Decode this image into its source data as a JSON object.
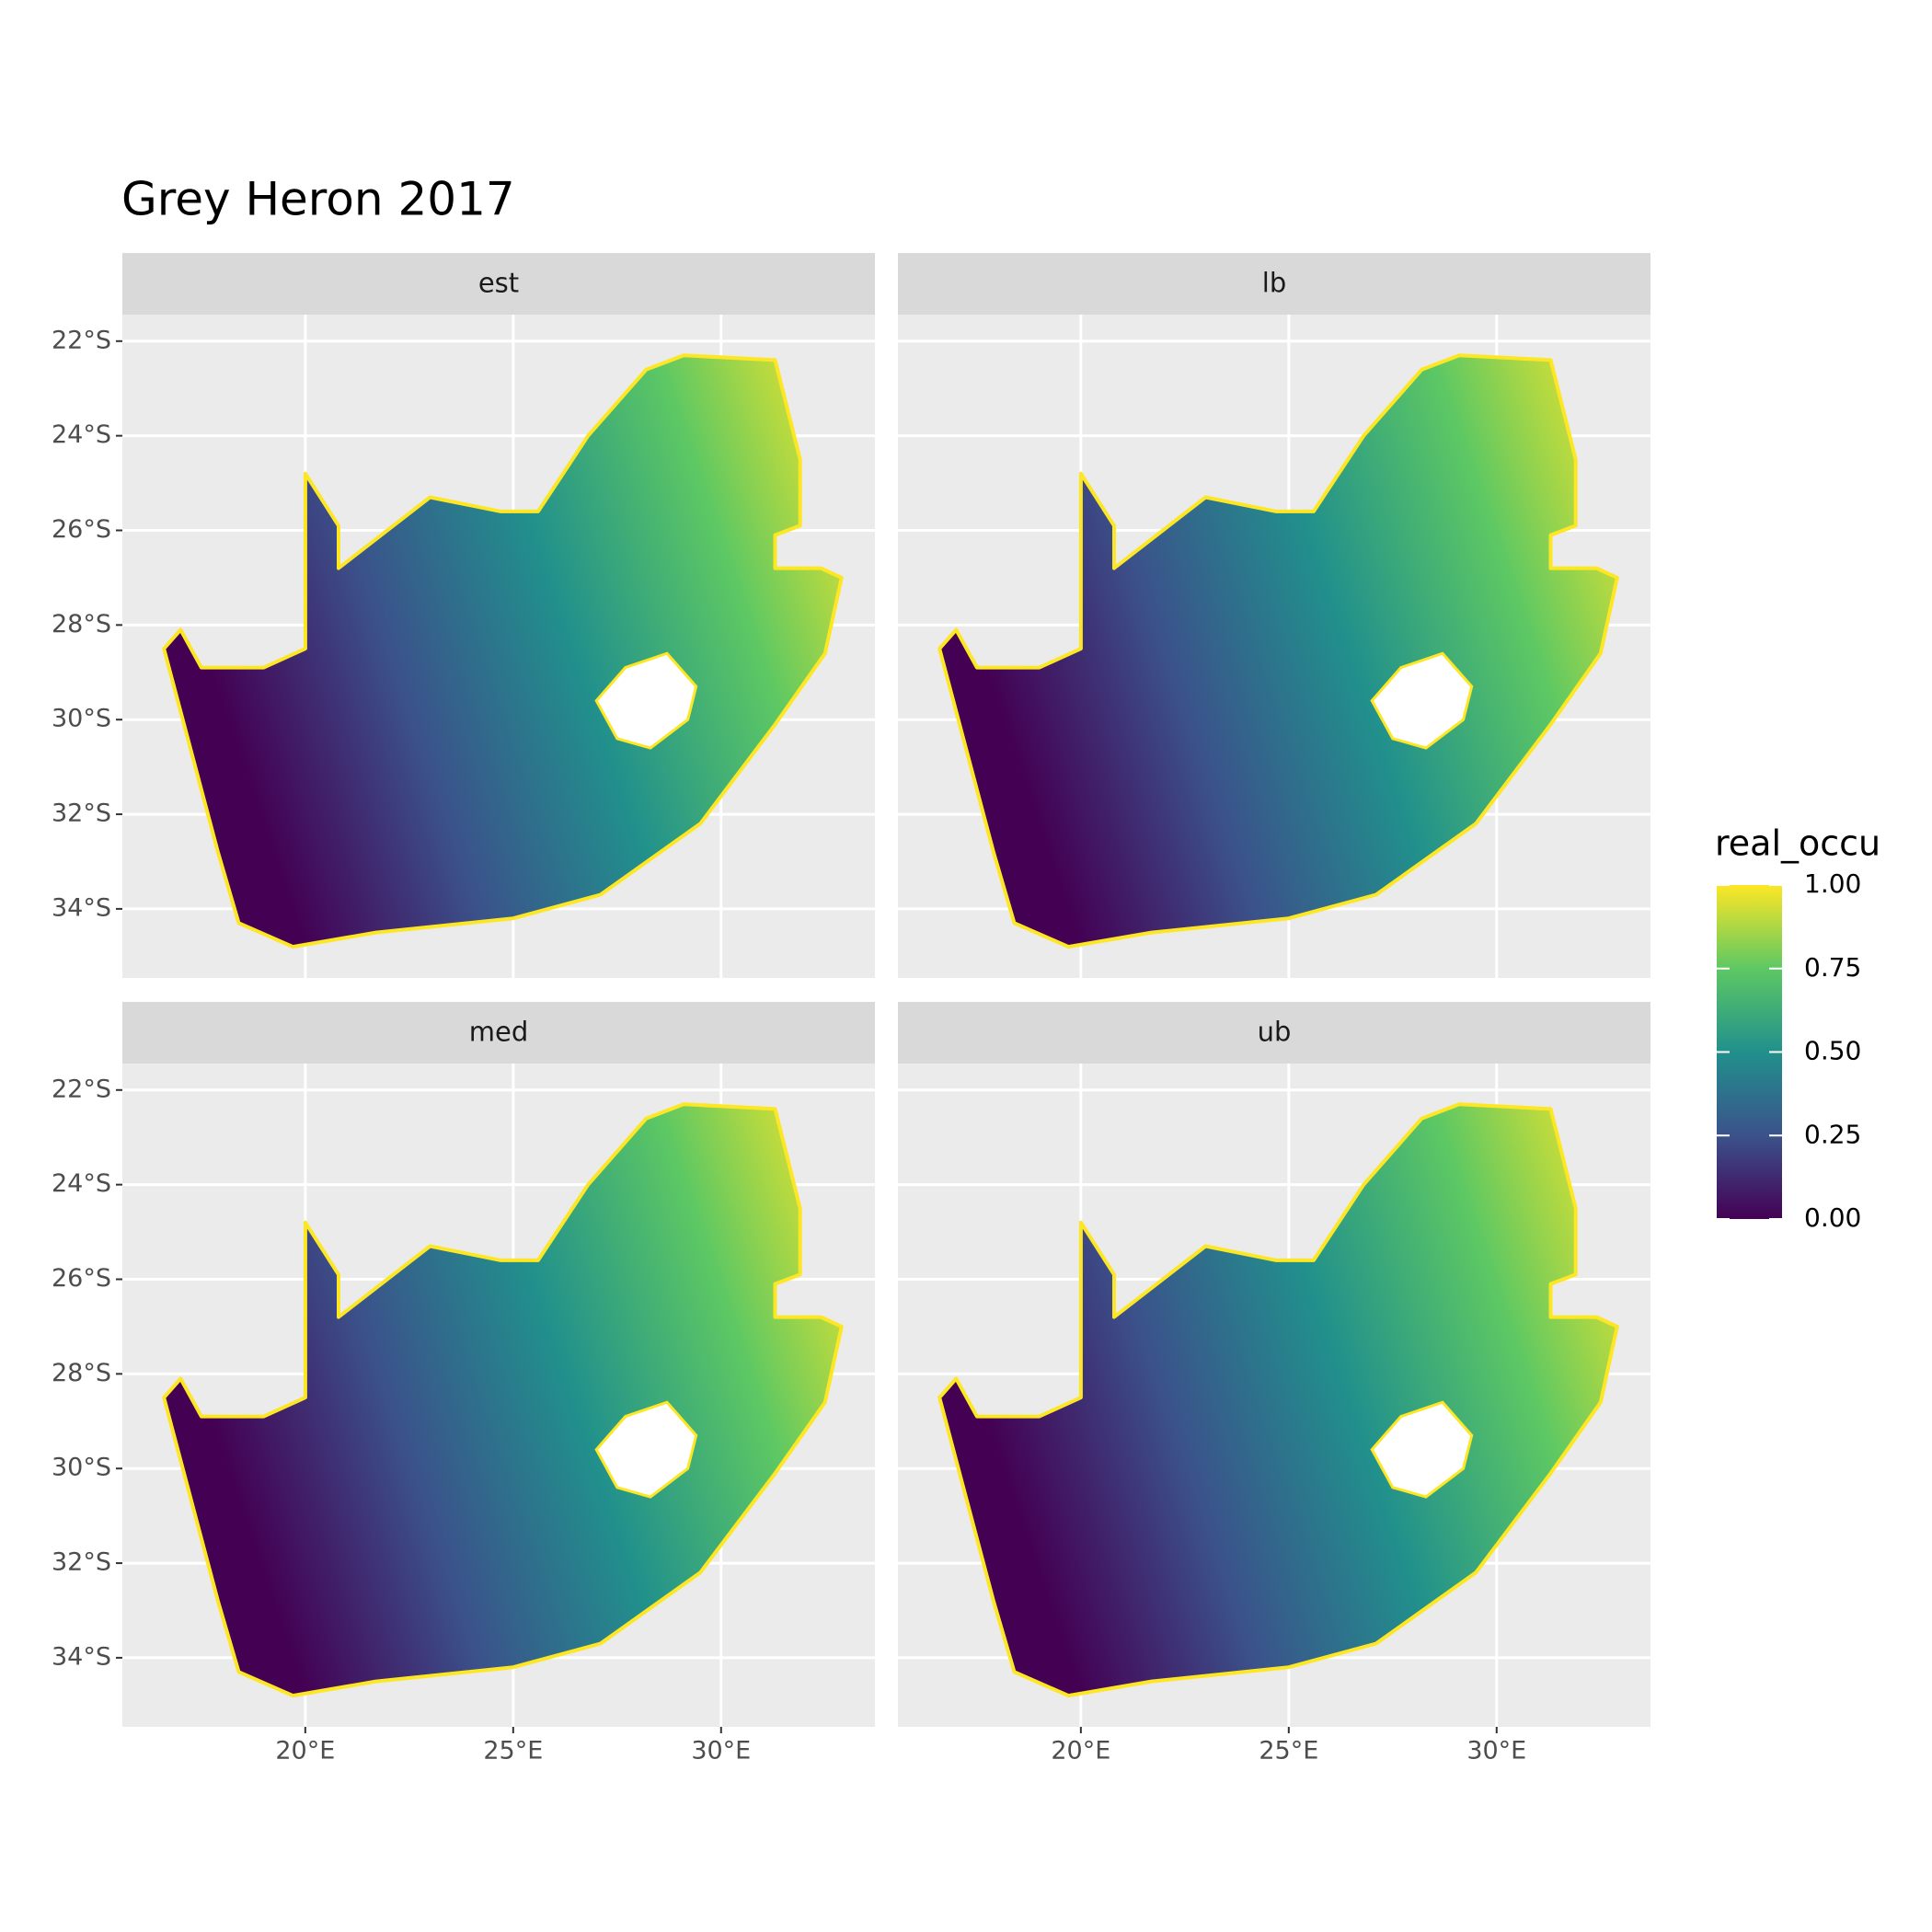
{
  "chart_data": {
    "type": "map",
    "title": "Grey Heron 2017",
    "panels": [
      "est",
      "lb",
      "med",
      "ub"
    ],
    "xlim": [
      15.6,
      33.7
    ],
    "ylim": [
      -35.46,
      -21.44
    ],
    "xticks": [
      {
        "value": 20,
        "label": "20°E"
      },
      {
        "value": 25,
        "label": "25°E"
      },
      {
        "value": 30,
        "label": "30°E"
      }
    ],
    "yticks": [
      {
        "value": -22,
        "label": "22°S"
      },
      {
        "value": -24,
        "label": "24°S"
      },
      {
        "value": -26,
        "label": "26°S"
      },
      {
        "value": -28,
        "label": "28°S"
      },
      {
        "value": -30,
        "label": "30°S"
      },
      {
        "value": -32,
        "label": "32°S"
      },
      {
        "value": -34,
        "label": "34°S"
      }
    ],
    "grid": true,
    "outline": {
      "lon": [
        16.6,
        17.0,
        17.5,
        19.0,
        20.0,
        20.0,
        20.8,
        20.8,
        23.0,
        24.7,
        25.6,
        26.8,
        28.2,
        29.1,
        31.3,
        31.9,
        31.9,
        31.3,
        31.3,
        32.4,
        32.9,
        32.5,
        31.3,
        29.5,
        27.1,
        25.0,
        21.7,
        19.7,
        18.4,
        17.9
      ],
      "lat": [
        -28.5,
        -28.1,
        -28.9,
        -28.9,
        -28.5,
        -24.8,
        -25.9,
        -26.8,
        -25.3,
        -25.6,
        -25.6,
        -24.0,
        -22.6,
        -22.3,
        -22.4,
        -24.5,
        -25.9,
        -26.1,
        -26.8,
        -26.8,
        -27.0,
        -28.6,
        -30.1,
        -32.2,
        -33.7,
        -34.2,
        -34.5,
        -34.8,
        -34.3,
        -32.8
      ]
    },
    "hole": {
      "lon": [
        27.0,
        27.7,
        28.7,
        29.4,
        29.2,
        28.3,
        27.5
      ],
      "lat": [
        -29.6,
        -28.9,
        -28.6,
        -29.3,
        -30.0,
        -30.6,
        -30.4
      ]
    },
    "legend": {
      "title": "real_occu",
      "colors": [
        "#440154",
        "#3b528b",
        "#21908c",
        "#5dc863",
        "#fde725"
      ],
      "ticks": [
        {
          "value": 0,
          "label": "0.00"
        },
        {
          "value": 0.25,
          "label": "0.25"
        },
        {
          "value": 0.5,
          "label": "0.50"
        },
        {
          "value": 0.75,
          "label": "0.75"
        },
        {
          "value": 1,
          "label": "1.00"
        }
      ]
    }
  }
}
